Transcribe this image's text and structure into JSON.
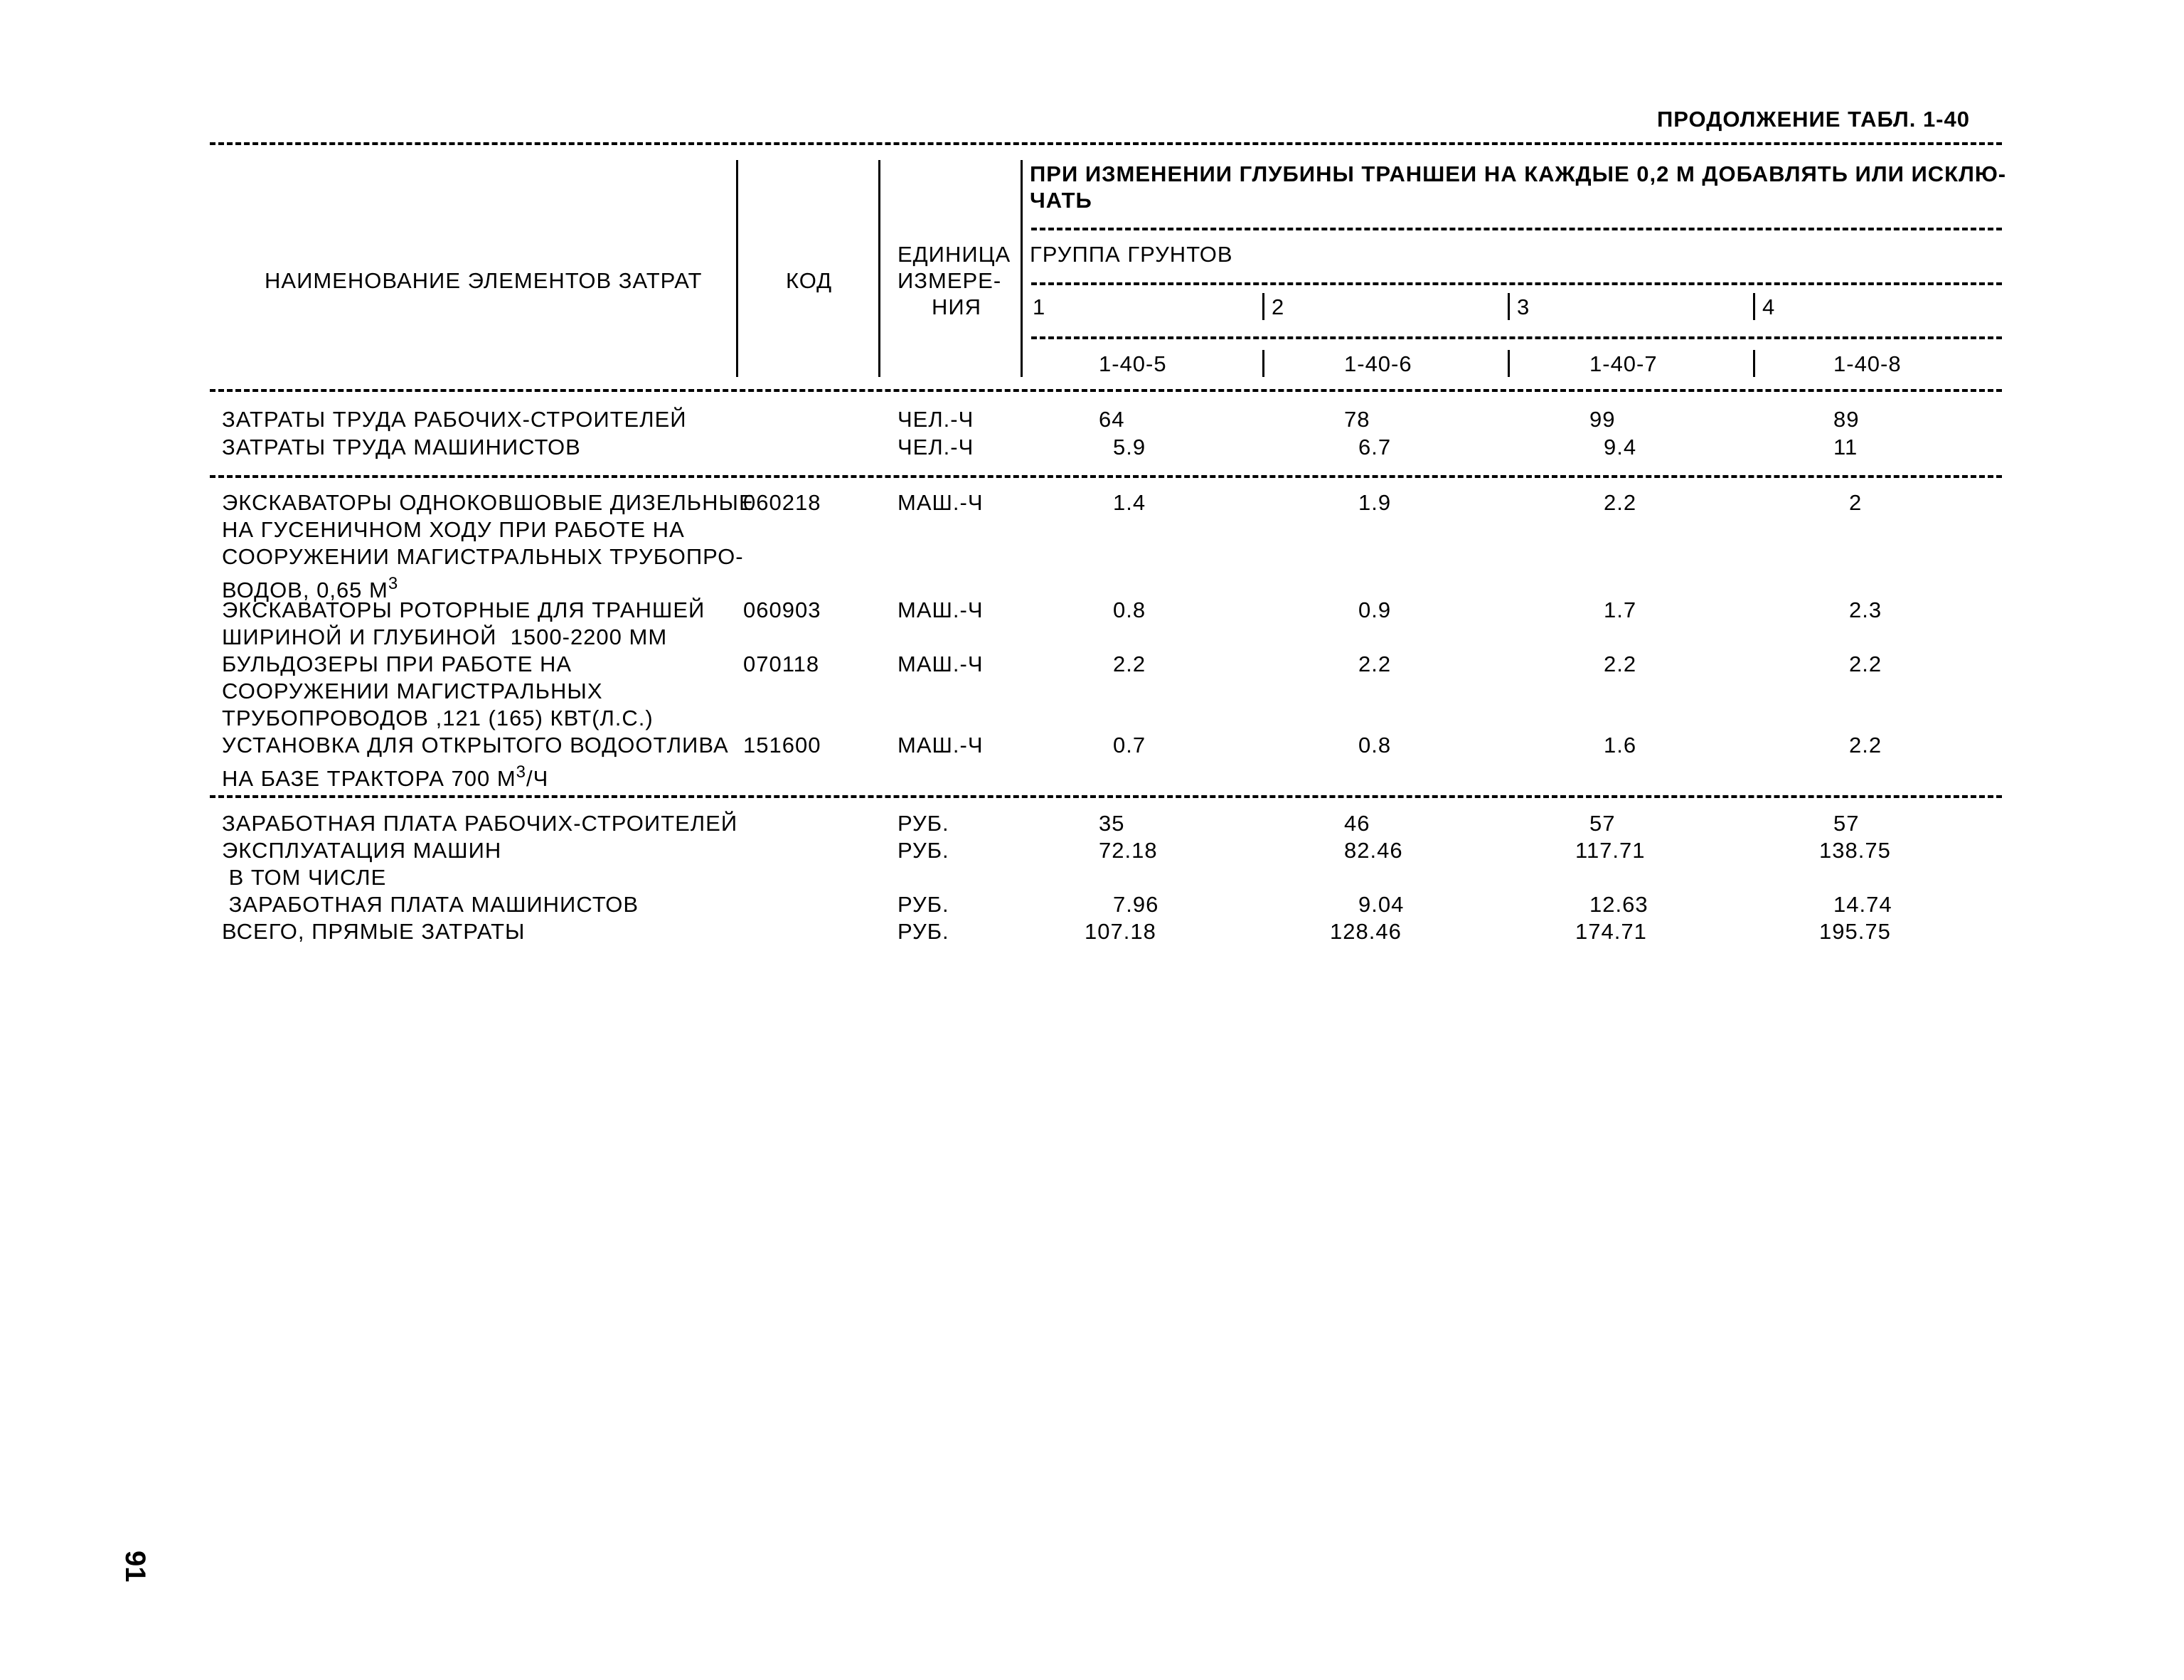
{
  "table_caption": "ПРОДОЛЖЕНИЕ ТАБЛ. 1-40",
  "header": {
    "name_col": "НАИМЕНОВАНИЕ ЭЛЕМЕНТОВ ЗАТРАТ",
    "code_col": "КОД",
    "unit_col": [
      "ЕДИНИЦА",
      "ИЗМЕРЕ-",
      "НИЯ"
    ],
    "span_title": [
      "ПРИ ИЗМЕНЕНИИ ГЛУБИНЫ ТРАНШЕИ НА КАЖДЫЕ 0,2 М ДОБАВЛЯТЬ ИЛИ ИСКЛЮ-",
      "ЧАТЬ"
    ],
    "soil_group": "ГРУППА ГРУНТОВ",
    "groups": [
      "1",
      "2",
      "3",
      "4"
    ],
    "codes": [
      "1-40-5",
      "1-40-6",
      "1-40-7",
      "1-40-8"
    ]
  },
  "labor": [
    {
      "name": "ЗАТРАТЫ ТРУДА РАБОЧИХ-СТРОИТЕЛЕЙ",
      "unit": "ЧЕЛ.-Ч",
      "values": [
        "64",
        "78",
        "99",
        "89"
      ]
    },
    {
      "name": "ЗАТРАТЫ ТРУДА МАШИНИСТОВ",
      "unit": "ЧЕЛ.-Ч",
      "values": [
        "5.9",
        "6.7",
        "9.4",
        "11"
      ]
    }
  ],
  "machines": [
    {
      "name": [
        "ЭКСКАВАТОРЫ ОДНОКОВШОВЫЕ ДИЗЕЛЬНЫЕ",
        "НА ГУСЕНИЧНОМ ХОДУ ПРИ РАБОТЕ НА",
        "СООРУЖЕНИИ МАГИСТРАЛЬНЫХ ТРУБОПРО-",
        "ВОДОВ, 0,65 М"
      ],
      "sup": "3",
      "code": "060218",
      "unit": "МАШ.-Ч",
      "values": [
        "1.4",
        "1.9",
        "2.2",
        "2"
      ]
    },
    {
      "name": [
        "ЭКСКАВАТОРЫ РОТОРНЫЕ ДЛЯ ТРАНШЕЙ",
        "ШИРИНОЙ И ГЛУБИНОЙ  1500-2200 ММ"
      ],
      "code": "060903",
      "unit": "МАШ.-Ч",
      "values": [
        "0.8",
        "0.9",
        "1.7",
        "2.3"
      ]
    },
    {
      "name": [
        "БУЛЬДОЗЕРЫ ПРИ РАБОТЕ НА",
        "СООРУЖЕНИИ МАГИСТРАЛЬНЫХ",
        "ТРУБОПРОВОДОВ ,121 (165) КВТ(Л.С.)"
      ],
      "code": "070118",
      "unit": "МАШ.-Ч",
      "values": [
        "2.2",
        "2.2",
        "2.2",
        "2.2"
      ]
    },
    {
      "name": [
        "УСТАНОВКА ДЛЯ ОТКРЫТОГО ВОДООТЛИВА",
        "НА БАЗЕ ТРАКТОРА 700 М"
      ],
      "sup": "3",
      "suffix": "/Ч",
      "code": "151600",
      "unit": "МАШ.-Ч",
      "values": [
        "0.7",
        "0.8",
        "1.6",
        "2.2"
      ]
    }
  ],
  "totals": [
    {
      "name": "ЗАРАБОТНАЯ ПЛАТА РАБОЧИХ-СТРОИТЕЛЕЙ",
      "unit": "РУБ.",
      "values": [
        "35",
        "46",
        "57",
        "57"
      ]
    },
    {
      "name": "ЭКСПЛУАТАЦИЯ МАШИН",
      "unit": "РУБ.",
      "values": [
        "72.18",
        "82.46",
        "117.71",
        "138.75"
      ]
    },
    {
      "name": " В ТОМ ЧИСЛЕ",
      "unit": "",
      "values": [
        "",
        "",
        "",
        ""
      ]
    },
    {
      "name": " ЗАРАБОТНАЯ ПЛАТА МАШИНИСТОВ",
      "unit": "РУБ.",
      "values": [
        "7.96",
        "9.04",
        "12.63",
        "14.74"
      ]
    },
    {
      "name": "ВСЕГО, ПРЯМЫЕ ЗАТРАТЫ",
      "unit": "РУБ.",
      "values": [
        "107.18",
        "128.46",
        "174.71",
        "195.75"
      ]
    }
  ],
  "page_number": "91"
}
